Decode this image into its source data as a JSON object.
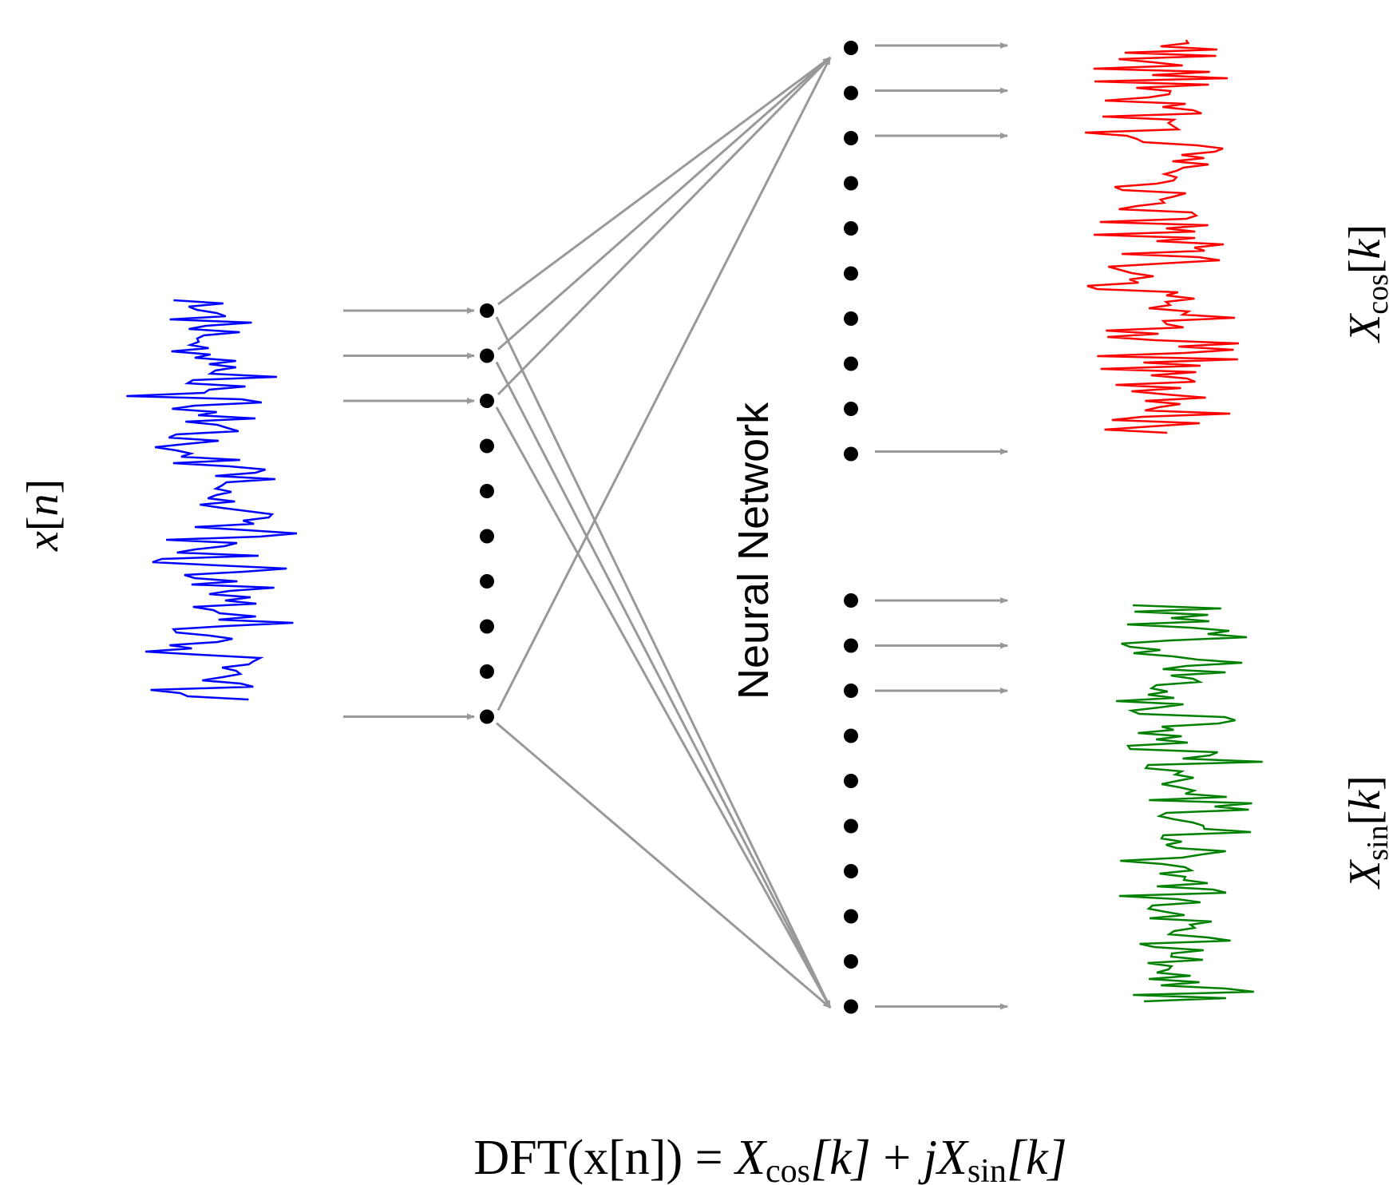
{
  "labels": {
    "input": {
      "main": "x",
      "open": "[",
      "arg": "n",
      "close": "]"
    },
    "output_cos": {
      "main": "X",
      "sub": "cos",
      "open": "[",
      "arg": "k",
      "close": "]"
    },
    "output_sin": {
      "main": "X",
      "sub": "sin",
      "open": "[",
      "arg": "k",
      "close": "]"
    },
    "network": "Neural Network",
    "equation": {
      "dft": "DFT",
      "arg": "(x[n])",
      "eq": " = ",
      "x1": "X",
      "sub1": "cos",
      "k1": "[k]",
      "plus": " + ",
      "j": "j",
      "x2": "X",
      "sub2": "sin",
      "k2": "[k]"
    }
  },
  "colors": {
    "input_signal": "#0000ff",
    "cos_signal": "#ff0000",
    "sin_signal": "#008000",
    "arrows": "#999999",
    "nodes": "#000000"
  }
}
